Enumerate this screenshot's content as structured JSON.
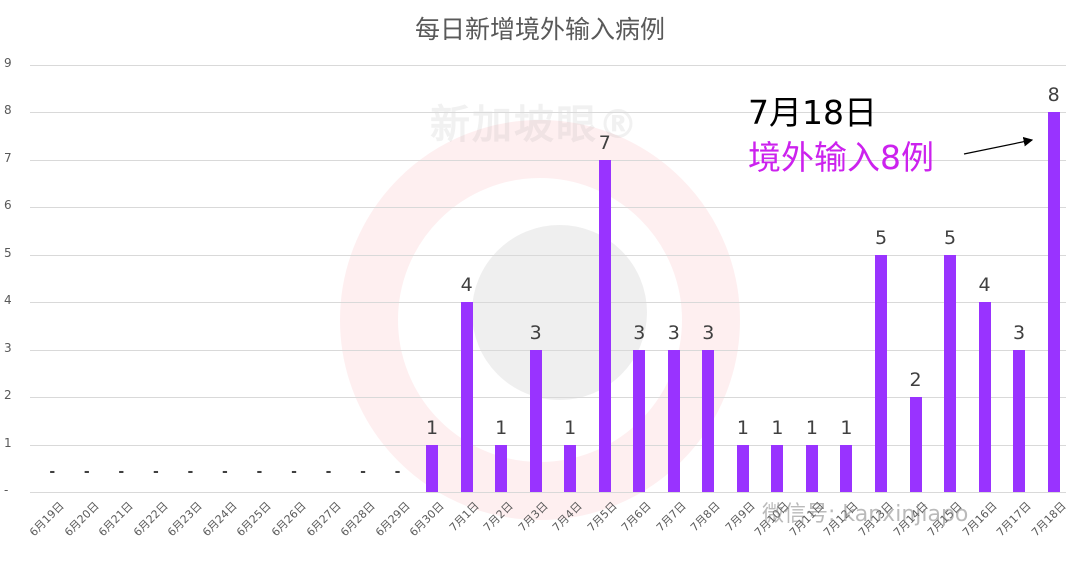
{
  "chart_data": {
    "type": "bar",
    "title": "每日新增境外输入病例",
    "xlabel": "",
    "ylabel": "",
    "ylim": [
      0,
      9
    ],
    "yticks": [
      "-",
      "1",
      "2",
      "3",
      "4",
      "5",
      "6",
      "7",
      "8",
      "9"
    ],
    "grid": true,
    "legend": "none",
    "bar_color": "#9933ff",
    "categories": [
      "6月19日",
      "6月20日",
      "6月21日",
      "6月22日",
      "6月23日",
      "6月24日",
      "6月25日",
      "6月26日",
      "6月27日",
      "6月28日",
      "6月29日",
      "6月30日",
      "7月1日",
      "7月2日",
      "7月3日",
      "7月4日",
      "7月5日",
      "7月6日",
      "7月7日",
      "7月8日",
      "7月9日",
      "7月10日",
      "7月11日",
      "7月12日",
      "7月13日",
      "7月14日",
      "7月15日",
      "7月16日",
      "7月17日",
      "7月18日"
    ],
    "values": [
      0,
      0,
      0,
      0,
      0,
      0,
      0,
      0,
      0,
      0,
      0,
      1,
      4,
      1,
      3,
      1,
      7,
      3,
      3,
      3,
      1,
      1,
      1,
      1,
      5,
      2,
      5,
      4,
      3,
      8
    ],
    "data_labels": [
      "-",
      "-",
      "-",
      "-",
      "-",
      "-",
      "-",
      "-",
      "-",
      "-",
      "-",
      "1",
      "4",
      "1",
      "3",
      "1",
      "7",
      "3",
      "3",
      "3",
      "1",
      "1",
      "1",
      "1",
      "5",
      "2",
      "5",
      "4",
      "3",
      "8"
    ],
    "annotations": [
      {
        "text": "7月18日",
        "color": "#000000"
      },
      {
        "text": "境外输入8例",
        "color": "#cc22ee",
        "arrow_to": "7月18日"
      }
    ]
  },
  "watermarks": {
    "brand": "新加坡眼®",
    "wechat": "微信号: kanxinjiapo"
  }
}
